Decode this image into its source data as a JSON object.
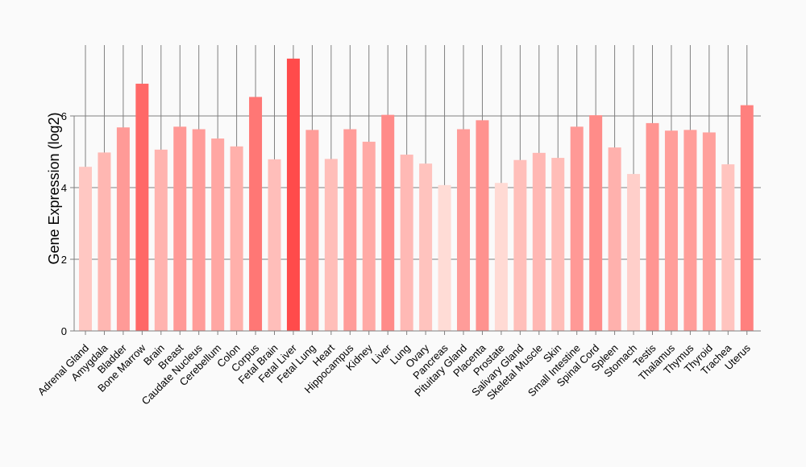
{
  "chart_data": {
    "type": "bar",
    "title": "",
    "xlabel": "",
    "ylabel": "Gene Expression (log2)",
    "ylim": [
      0,
      8
    ],
    "yticks": [
      0,
      2,
      4,
      6
    ],
    "grid": true,
    "categories": [
      "Adrenal Gland",
      "Amygdala",
      "Bladder",
      "Bone Marrow",
      "Brain",
      "Breast",
      "Caudate Nucleus",
      "Cerebellum",
      "Colon",
      "Corpus",
      "Fetal Brain",
      "Fetal Liver",
      "Fetal Lung",
      "Heart",
      "Hippocampus",
      "Kidney",
      "Liver",
      "Lung",
      "Ovary",
      "Pancreas",
      "Pituitary Gland",
      "Placenta",
      "Prostate",
      "Salivary Gland",
      "Skeletal Muscle",
      "Skin",
      "Small Intestine",
      "Spinal Cord",
      "Spleen",
      "Stomach",
      "Testis",
      "Thalamus",
      "Thymus",
      "Thyroid",
      "Trachea",
      "Uterus"
    ],
    "values": [
      4.58,
      4.98,
      5.68,
      6.9,
      5.06,
      5.7,
      5.63,
      5.37,
      5.15,
      6.53,
      4.79,
      7.6,
      5.61,
      4.8,
      5.63,
      5.28,
      6.03,
      4.92,
      4.67,
      4.07,
      5.63,
      5.88,
      4.13,
      4.77,
      4.97,
      4.83,
      5.7,
      6.02,
      5.12,
      4.38,
      5.8,
      5.59,
      5.61,
      5.54,
      4.65,
      6.3
    ],
    "colors": {
      "low": "#ffdcd6",
      "high": "#ff4b4b",
      "gridline": "#808080",
      "axis": "#808080"
    }
  }
}
